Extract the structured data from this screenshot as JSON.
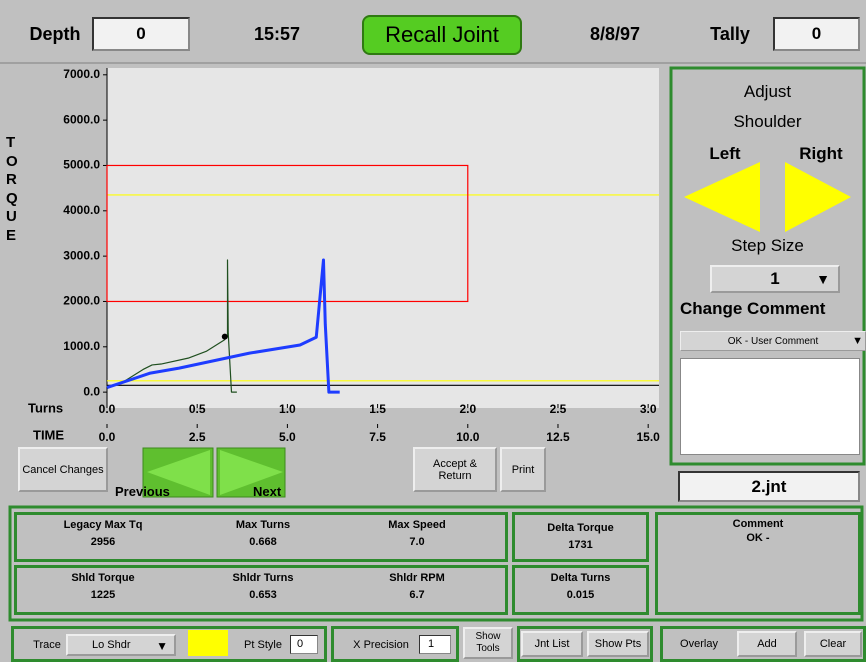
{
  "header": {
    "depth_label": "Depth",
    "depth": "0",
    "time": "15:57",
    "mode": "Recall Joint",
    "date": "8/8/97",
    "tally_label": "Tally",
    "tally": "0"
  },
  "chart_data": {
    "type": "line",
    "y_label": "TORQUE",
    "x_label": "Turns",
    "x2_label": "TIME",
    "xlim": [
      0,
      3.06
    ],
    "xticks": [
      {
        "value": 0,
        "label": "0.0"
      },
      0.5,
      {
        "value": 1,
        "label": "1.0"
      },
      1.5,
      {
        "value": 2,
        "label": "2.0"
      },
      2.5,
      {
        "value": 3,
        "label": "3.0"
      }
    ],
    "x2lim": [
      0,
      15.3
    ],
    "x2ticks": [
      {
        "value": 0,
        "label": "0.0"
      },
      2.5,
      {
        "value": 5,
        "label": "5.0"
      },
      7.5,
      {
        "value": 10,
        "label": "10.0"
      },
      12.5,
      {
        "value": 15,
        "label": "15.0"
      }
    ],
    "ylim": [
      -350,
      7150
    ],
    "yticks": [
      {
        "value": 0,
        "label": "0.0"
      },
      {
        "value": 1000,
        "label": "1000.0"
      },
      {
        "value": 2000,
        "label": "2000.0"
      },
      {
        "value": 3000,
        "label": "3000.0"
      },
      {
        "value": 4000,
        "label": "4000.0"
      },
      {
        "value": 5000,
        "label": "5000.0"
      },
      {
        "value": 6000,
        "label": "6000.0"
      },
      {
        "value": 7000,
        "label": "7000.0"
      }
    ],
    "series": [
      {
        "color": "#1f4f1f",
        "width": 1.2,
        "x": [
          0,
          0.1,
          0.2,
          0.25,
          0.3,
          0.45,
          0.55,
          0.65,
          0.668,
          0.668,
          0.672,
          0.69,
          0.72
        ],
        "values": [
          100,
          250,
          500,
          600,
          620,
          750,
          900,
          1150,
          1225,
          2914,
          1300,
          0,
          0
        ]
      },
      {
        "color": "#1e3cff",
        "width": 3,
        "x": [
          0,
          0.24,
          0.4,
          0.79,
          1.07,
          1.16,
          1.2,
          1.21,
          1.23,
          1.29
        ],
        "values": [
          100,
          420,
          530,
          860,
          1040,
          1210,
          2914,
          1500,
          0,
          0
        ]
      }
    ],
    "markers": {
      "color": "#000000",
      "x": [
        0.653
      ],
      "values": [
        1225
      ]
    },
    "target_box": {
      "color": "#ff0000",
      "xlim": [
        0,
        2
      ],
      "ylim": [
        2000,
        5000
      ]
    },
    "ref_lines": [
      {
        "color": "#ffff00",
        "value": 4350
      },
      {
        "color": "#ffff00",
        "value": 250
      },
      {
        "color": "#000000",
        "value": 150
      }
    ]
  },
  "adjust": {
    "title_1": "Adjust",
    "title_2": "Shoulder",
    "left": "Left",
    "right": "Right",
    "step_label": "Step Size",
    "step": "1",
    "comment_label": "Change Comment",
    "comment_choice": "OK - User Comment"
  },
  "file": "2.jnt",
  "buttons": {
    "cancel": "Cancel Changes",
    "previous": "Previous",
    "next": "Next",
    "accept": "Accept & Return",
    "print": "Print"
  },
  "stats": [
    {
      "label": "Legacy Max Tq",
      "value": "2956"
    },
    {
      "label": "Max Turns",
      "value": "0.668"
    },
    {
      "label": "Max Speed",
      "value": "7.0"
    },
    {
      "label": "Shld Torque",
      "value": "1225"
    },
    {
      "label": "Shldr Turns",
      "value": "0.653"
    },
    {
      "label": "Shldr RPM",
      "value": "6.7"
    }
  ],
  "delta": [
    {
      "label": "Delta Torque",
      "value": "1731"
    },
    {
      "label": "Delta Turns",
      "value": "0.015"
    }
  ],
  "comment": {
    "label": "Comment",
    "value": "OK -"
  },
  "toolbar": {
    "trace_label": "Trace",
    "trace": "Lo Shdr",
    "trace_color": "#ffff00",
    "pt_style_label": "Pt Style",
    "pt_style": "0",
    "x_precision_label": "X Precision",
    "x_precision": "1",
    "show_tools": "Show Tools",
    "jnt_list": "Jnt List",
    "show_pts": "Show Pts",
    "overlay": "Overlay",
    "add": "Add",
    "clear": "Clear"
  }
}
